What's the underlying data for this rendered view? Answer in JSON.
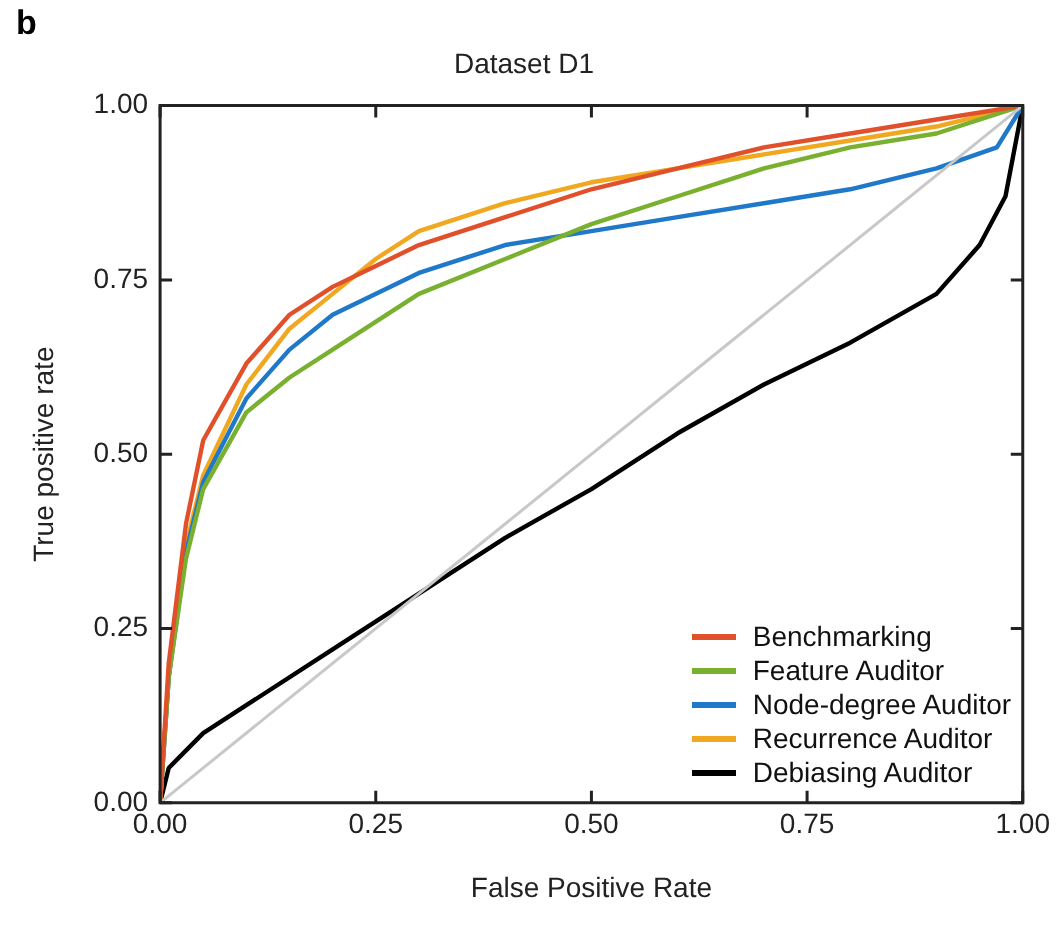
{
  "chart_data": {
    "type": "line",
    "title": "Dataset D1",
    "xlabel": "False Positive Rate",
    "ylabel": "True positive rate",
    "annotations": [
      "b"
    ],
    "xlim": [
      0,
      1
    ],
    "ylim": [
      0,
      1
    ],
    "xticks": [
      {
        "value": 0,
        "label": "0.00"
      },
      {
        "value": 0.25,
        "label": "0.25"
      },
      {
        "value": 0.5,
        "label": "0.50"
      },
      {
        "value": 0.75,
        "label": "0.75"
      },
      {
        "value": 1,
        "label": "1.00"
      }
    ],
    "yticks": [
      {
        "value": 0,
        "label": "0.00"
      },
      {
        "value": 0.25,
        "label": "0.25"
      },
      {
        "value": 0.5,
        "label": "0.50"
      },
      {
        "value": 0.75,
        "label": "0.75"
      },
      {
        "value": 1,
        "label": "1.00"
      }
    ],
    "grid": false,
    "legend": "bottom right",
    "marker": "none",
    "line_style": "solid",
    "series": [
      {
        "color": "#c8c8c8",
        "x": [
          0,
          1
        ],
        "values": [
          0,
          1
        ]
      },
      {
        "name": "Benchmarking",
        "color": "#e0502a",
        "x": [
          0,
          0.01,
          0.03,
          0.05,
          0.1,
          0.15,
          0.2,
          0.25,
          0.3,
          0.4,
          0.5,
          0.6,
          0.7,
          0.8,
          0.9,
          1
        ],
        "values": [
          0,
          0.2,
          0.4,
          0.52,
          0.63,
          0.7,
          0.74,
          0.77,
          0.8,
          0.84,
          0.88,
          0.91,
          0.94,
          0.96,
          0.98,
          1
        ]
      },
      {
        "name": "Feature Auditor",
        "color": "#7ab030",
        "x": [
          0,
          0.01,
          0.03,
          0.05,
          0.1,
          0.15,
          0.2,
          0.3,
          0.4,
          0.5,
          0.6,
          0.7,
          0.8,
          0.9,
          1
        ],
        "values": [
          0,
          0.18,
          0.35,
          0.45,
          0.56,
          0.61,
          0.65,
          0.73,
          0.78,
          0.83,
          0.87,
          0.91,
          0.94,
          0.96,
          1
        ]
      },
      {
        "name": "Node-degree Auditor",
        "color": "#1f78c8",
        "x": [
          0,
          0.01,
          0.03,
          0.05,
          0.1,
          0.15,
          0.2,
          0.3,
          0.4,
          0.5,
          0.6,
          0.7,
          0.8,
          0.9,
          0.97,
          1
        ],
        "values": [
          0,
          0.18,
          0.36,
          0.46,
          0.58,
          0.65,
          0.7,
          0.76,
          0.8,
          0.82,
          0.84,
          0.86,
          0.88,
          0.91,
          0.94,
          1
        ]
      },
      {
        "name": "Recurrence Auditor",
        "color": "#f0a820",
        "x": [
          0,
          0.01,
          0.03,
          0.05,
          0.1,
          0.15,
          0.2,
          0.25,
          0.3,
          0.4,
          0.5,
          0.6,
          0.7,
          0.8,
          0.9,
          1
        ],
        "values": [
          0,
          0.18,
          0.37,
          0.47,
          0.6,
          0.68,
          0.73,
          0.78,
          0.82,
          0.86,
          0.89,
          0.91,
          0.93,
          0.95,
          0.97,
          1
        ]
      },
      {
        "name": "Debiasing Auditor",
        "color": "#000000",
        "x": [
          0,
          0.01,
          0.05,
          0.1,
          0.2,
          0.3,
          0.4,
          0.5,
          0.6,
          0.7,
          0.8,
          0.9,
          0.95,
          0.98,
          1
        ],
        "values": [
          0,
          0.05,
          0.1,
          0.14,
          0.22,
          0.3,
          0.38,
          0.45,
          0.53,
          0.6,
          0.66,
          0.73,
          0.8,
          0.87,
          1
        ]
      }
    ]
  }
}
